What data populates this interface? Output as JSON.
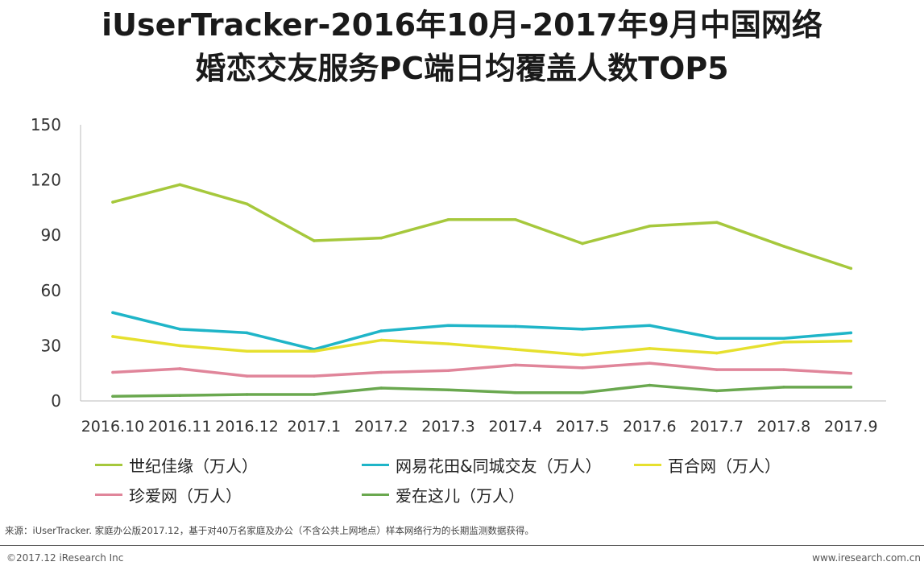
{
  "title_line1": "iUserTracker-2016年10月-2017年9月中国网络",
  "title_line2": "婚恋交友服务PC端日均覆盖人数TOP5",
  "chart_data": {
    "type": "line",
    "title": "iUserTracker-2016年10月-2017年9月中国网络婚恋交友服务PC端日均覆盖人数TOP5",
    "categories": [
      "2016.10",
      "2016.11",
      "2016.12",
      "2017.1",
      "2017.2",
      "2017.3",
      "2017.4",
      "2017.5",
      "2017.6",
      "2017.7",
      "2017.8",
      "2017.9"
    ],
    "ylim": [
      0,
      150
    ],
    "yticks": [
      0,
      30,
      60,
      90,
      120,
      150
    ],
    "grid": false,
    "legend_position": "bottom",
    "series": [
      {
        "name": "世纪佳缘（万人）",
        "color": "#a6c83c",
        "values": [
          108,
          117.5,
          107,
          87,
          88.5,
          98.5,
          98.5,
          85.5,
          95,
          97,
          84,
          72
        ]
      },
      {
        "name": "网易花田&同城交友（万人）",
        "color": "#1fb5c8",
        "values": [
          48,
          39,
          37,
          28,
          38,
          41,
          40.5,
          39,
          41,
          34,
          34,
          37
        ]
      },
      {
        "name": "百合网（万人）",
        "color": "#e6e02e",
        "values": [
          35,
          30,
          27,
          27,
          33,
          31,
          28,
          25,
          28.5,
          26,
          32,
          32.5
        ]
      },
      {
        "name": "珍爱网（万人）",
        "color": "#e0859a",
        "values": [
          15.5,
          17.5,
          13.5,
          13.5,
          15.5,
          16.5,
          19.5,
          18,
          20.5,
          17,
          17,
          15
        ]
      },
      {
        "name": "爱在这儿（万人）",
        "color": "#6aa84f",
        "values": [
          2.5,
          3,
          3.5,
          3.5,
          7,
          6,
          4.5,
          4.5,
          8.5,
          5.5,
          7.5,
          7.5
        ]
      }
    ]
  },
  "legend_labels": {
    "s0": "世纪佳缘（万人）",
    "s1": "网易花田&同城交友（万人）",
    "s2": "百合网（万人）",
    "s3": "珍爱网（万人）",
    "s4": "爱在这儿（万人）"
  },
  "source_note": "来源：iUserTracker. 家庭办公版2017.12，基于对40万名家庭及办公（不含公共上网地点）样本网络行为的长期监测数据获得。",
  "footer_left": "©2017.12 iResearch Inc",
  "footer_right": "www.iresearch.com.cn"
}
